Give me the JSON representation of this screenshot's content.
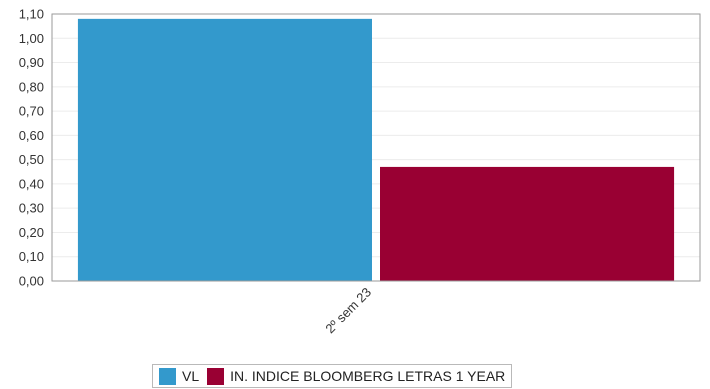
{
  "chart_data": {
    "type": "bar",
    "categories": [
      "2º sem 23"
    ],
    "series": [
      {
        "name": "VL",
        "values": [
          1.08
        ],
        "color": "#3399cc"
      },
      {
        "name": "IN. INDICE BLOOMBERG LETRAS 1 YEAR",
        "values": [
          0.47
        ],
        "color": "#990033"
      }
    ],
    "title": "",
    "xlabel": "",
    "ylabel": "",
    "ylim": [
      0,
      1.1
    ],
    "yticks": [
      "0,00",
      "0,10",
      "0,20",
      "0,30",
      "0,40",
      "0,50",
      "0,60",
      "0,70",
      "0,80",
      "0,90",
      "1,00",
      "1,10"
    ],
    "grid": true,
    "legend_position": "bottom"
  }
}
